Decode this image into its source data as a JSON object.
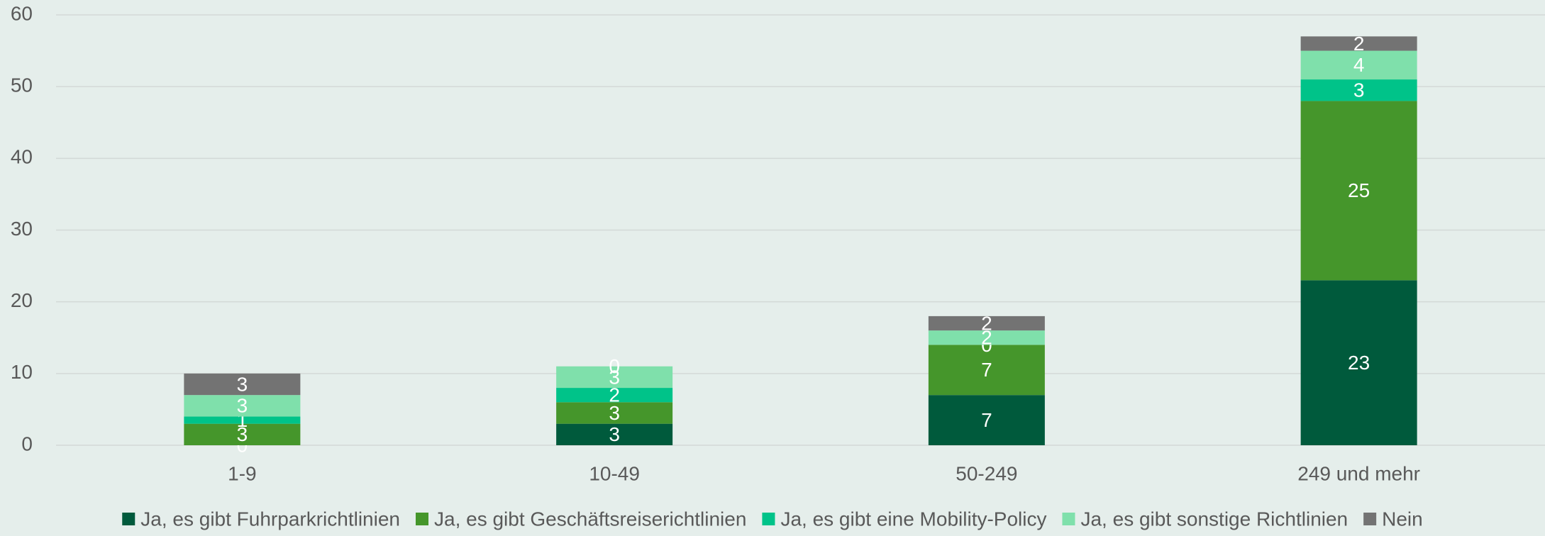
{
  "chart_data": {
    "type": "stacked_bar",
    "categories": [
      "1-9",
      "10-49",
      "50-249",
      "249 und mehr"
    ],
    "series": [
      {
        "name": "Ja, es gibt Fuhrparkrichtlinien",
        "color": "#005a3c",
        "values": [
          0,
          3,
          7,
          23
        ]
      },
      {
        "name": "Ja, es gibt Geschäftsreiserichtlinien",
        "color": "#45962b",
        "values": [
          3,
          3,
          7,
          25
        ]
      },
      {
        "name": "Ja, es gibt eine Mobility-Policy",
        "color": "#00c389",
        "values": [
          1,
          2,
          0,
          3
        ]
      },
      {
        "name": "Ja, es gibt sonstige Richtlinien",
        "color": "#7fe0ab",
        "values": [
          3,
          3,
          2,
          4
        ]
      },
      {
        "name": "Nein",
        "color": "#737373",
        "values": [
          3,
          0,
          2,
          2
        ]
      }
    ],
    "ylim": [
      0,
      60
    ],
    "yticks": [
      0,
      10,
      20,
      30,
      40,
      50,
      60
    ],
    "grid": true,
    "legend": "bottom"
  }
}
